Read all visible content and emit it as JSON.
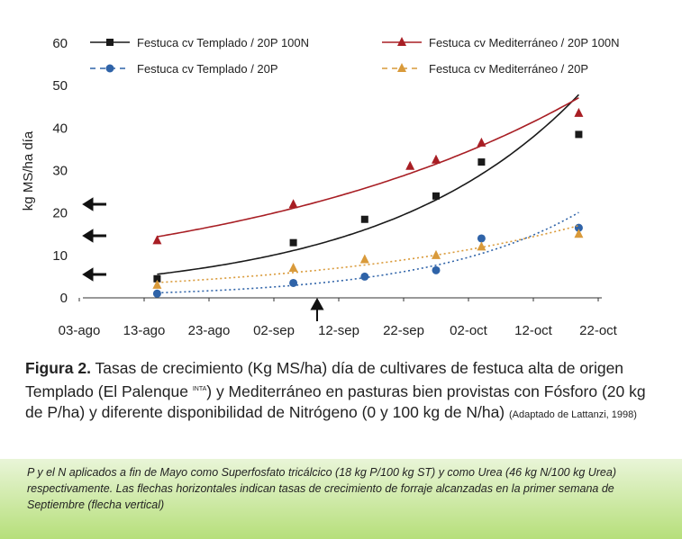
{
  "chart_data": {
    "type": "scatter",
    "y_label": "kg MS/ha día",
    "xlim": [
      0,
      80
    ],
    "xticks": [
      {
        "value": 0,
        "label": "03-ago"
      },
      {
        "value": 10,
        "label": "13-ago"
      },
      {
        "value": 20,
        "label": "23-ago"
      },
      {
        "value": 30,
        "label": "02-sep"
      },
      {
        "value": 40,
        "label": "12-sep"
      },
      {
        "value": 50,
        "label": "22-sep"
      },
      {
        "value": 60,
        "label": "02-oct"
      },
      {
        "value": 70,
        "label": "12-oct"
      },
      {
        "value": 80,
        "label": "22-oct"
      }
    ],
    "ylim": [
      0,
      60
    ],
    "yticks": [
      0,
      10,
      20,
      30,
      40,
      50,
      60
    ],
    "series": [
      {
        "name": "Festuca cv Templado / 20P 100N",
        "color": "#1a1a1a",
        "marker": "square",
        "dash": "solid",
        "x": [
          12,
          33,
          44,
          55,
          62,
          77
        ],
        "values": [
          4.5,
          13,
          18.5,
          24,
          32,
          38.5
        ]
      },
      {
        "name": "Festuca cv Mediterráneo  / 20P 100N",
        "color": "#a81e24",
        "marker": "triangle",
        "dash": "solid",
        "x": [
          12,
          33,
          51,
          55,
          62,
          77
        ],
        "values": [
          13.5,
          22,
          31,
          32.5,
          36.5,
          43.5
        ]
      },
      {
        "name": "Festuca cv Templado / 20P",
        "color": "#2f63a8",
        "marker": "circle",
        "dash": "dotted",
        "x": [
          12,
          33,
          44,
          55,
          62,
          77
        ],
        "values": [
          1,
          3.5,
          5,
          6.5,
          14,
          16.5
        ]
      },
      {
        "name": "Festuca cv Mediterráneo  / 20P",
        "color": "#d99a3a",
        "marker": "triangle",
        "dash": "dotted",
        "x": [
          12,
          33,
          44,
          55,
          62,
          77
        ],
        "values": [
          3,
          7,
          9,
          10,
          12,
          15
        ]
      }
    ],
    "caption": {
      "label": "Figura 2.",
      "text1": "Tasas de crecimiento (Kg MS/ha) día de cultivares de festuca alta de origen Templado (El Palenque ",
      "sup": "INTA",
      "text2": ") y Mediterráneo en pasturas bien provistas con Fósforo (20 kg de P/ha) y diferente disponibilidad de Nitrógeno (0 y 100 kg de N/ha)",
      "source": "(Adaptado de Lattanzi, 1998)"
    },
    "note": "P y el N aplicados a fin de Mayo como Superfosfato tricálcico (18 kg P/100 kg ST) y como Urea (46 kg N/100 kg Urea) respectivamente. Las flechas horizontales indican tasas de crecimiento de forraje alcanzadas en la primer semana de Septiembre (flecha vertical)"
  }
}
